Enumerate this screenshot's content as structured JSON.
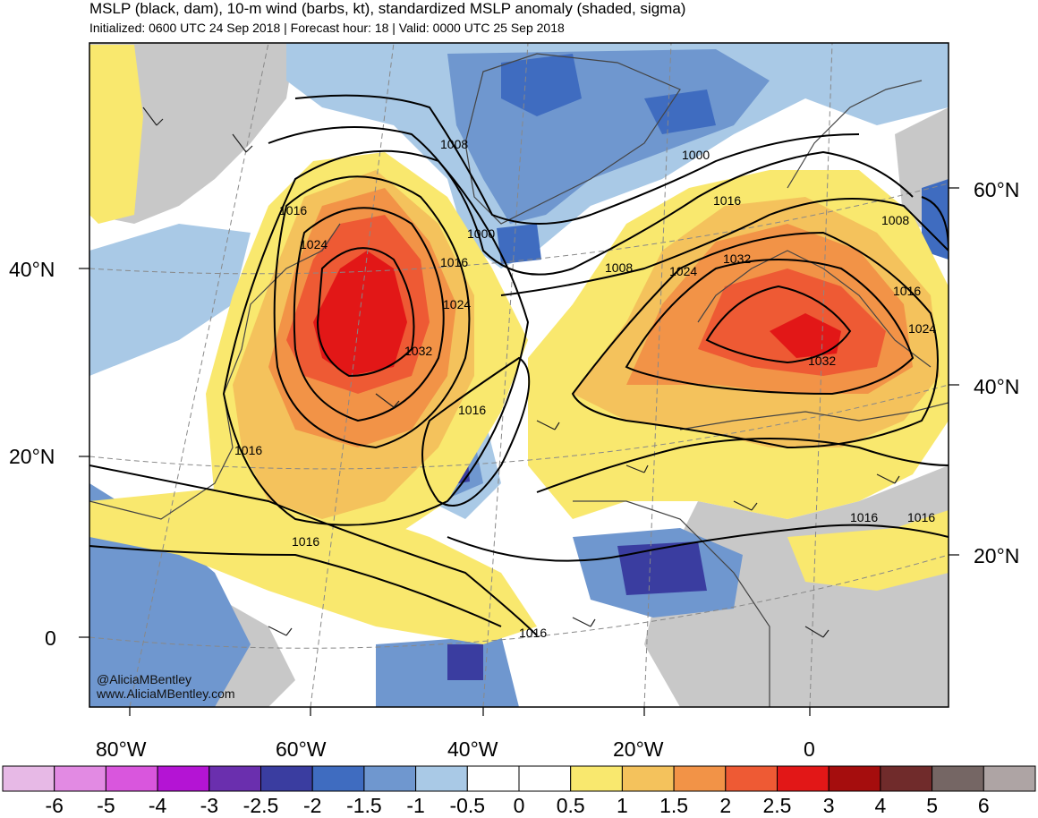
{
  "header": {
    "title": "MSLP (black, dam), 10-m wind (barbs, kt), standardized MSLP anomaly (shaded, sigma)",
    "subtitle": "Initialized: 0600 UTC 24 Sep 2018 | Forecast hour: 18 | Valid: 0000 UTC 25 Sep 2018"
  },
  "map": {
    "lat_labels_left": [
      "40°N",
      "20°N",
      "0"
    ],
    "lat_labels_right": [
      "60°N",
      "40°N",
      "20°N"
    ],
    "lon_labels": [
      "80°W",
      "60°W",
      "40°W",
      "20°W",
      "0"
    ],
    "contour_labels": [
      "1008",
      "1000",
      "1016",
      "1024",
      "1016",
      "1000",
      "1008",
      "1016",
      "1024",
      "1032",
      "1008",
      "1016",
      "1024",
      "1016",
      "1024",
      "1032",
      "1032",
      "1016",
      "1016",
      "1016",
      "1016",
      "1016"
    ],
    "credits": [
      "@AliciaMBentley",
      "www.AliciaMBentley.com"
    ]
  },
  "colorbar": {
    "ticks": [
      "-6",
      "-5",
      "-4",
      "-3",
      "-2.5",
      "-2",
      "-1.5",
      "-1",
      "-0.5",
      "0",
      "0.5",
      "1",
      "1.5",
      "2",
      "2.5",
      "3",
      "4",
      "5",
      "6"
    ],
    "colors": [
      "#e7b9e6",
      "#e28ae3",
      "#d956dd",
      "#b414d4",
      "#6a2fae",
      "#3a3da0",
      "#3f6cc0",
      "#6f97cf",
      "#a9c9e6",
      "#ffffff",
      "#ffffff",
      "#f9e86e",
      "#f4c25c",
      "#f29347",
      "#ee5a34",
      "#e21717",
      "#a50d0d",
      "#702b2b",
      "#756664",
      "#aea4a4"
    ]
  }
}
